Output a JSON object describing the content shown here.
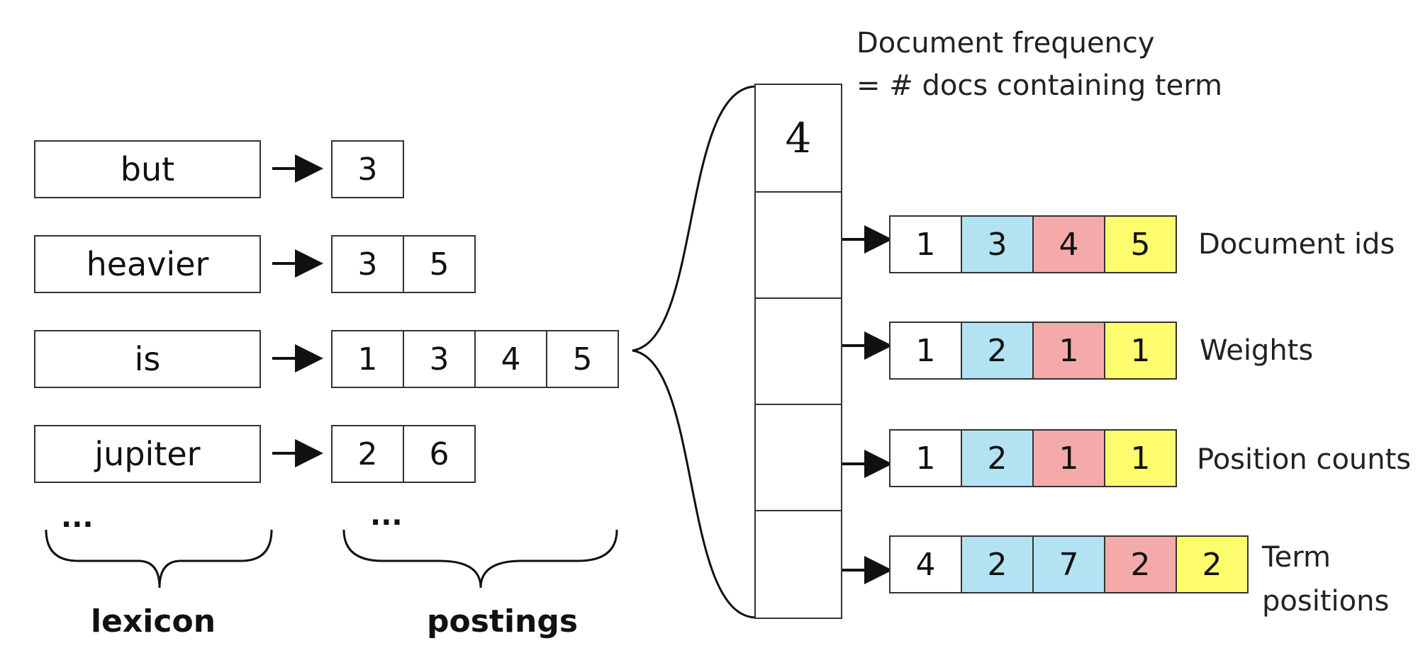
{
  "colors": {
    "white": "#ffffff",
    "blue": "#b3e3f3",
    "red": "#f5aaaa",
    "yellow": "#fdfd6e"
  },
  "lexicon": {
    "terms": [
      "but",
      "heavier",
      "is",
      "jupiter"
    ],
    "ellipsis": "...",
    "label": "lexicon"
  },
  "postings": {
    "rows": [
      [
        "3"
      ],
      [
        "3",
        "5"
      ],
      [
        "1",
        "3",
        "4",
        "5"
      ],
      [
        "2",
        "6"
      ]
    ],
    "ellipsis": "...",
    "label": "postings"
  },
  "detail": {
    "doc_frequency_value": "4",
    "doc_frequency_label_line1": "Document frequency",
    "doc_frequency_label_line2": "= # docs containing term",
    "rows": [
      {
        "label": "Document ids",
        "cells": [
          {
            "v": "1",
            "c": "white"
          },
          {
            "v": "3",
            "c": "blue"
          },
          {
            "v": "4",
            "c": "red"
          },
          {
            "v": "5",
            "c": "yellow"
          }
        ]
      },
      {
        "label": "Weights",
        "cells": [
          {
            "v": "1",
            "c": "white"
          },
          {
            "v": "2",
            "c": "blue"
          },
          {
            "v": "1",
            "c": "red"
          },
          {
            "v": "1",
            "c": "yellow"
          }
        ]
      },
      {
        "label": "Position counts",
        "cells": [
          {
            "v": "1",
            "c": "white"
          },
          {
            "v": "2",
            "c": "blue"
          },
          {
            "v": "1",
            "c": "red"
          },
          {
            "v": "1",
            "c": "yellow"
          }
        ]
      },
      {
        "label_line1": "Term",
        "label_line2": "positions",
        "cells": [
          {
            "v": "4",
            "c": "white"
          },
          {
            "v": "2",
            "c": "blue"
          },
          {
            "v": "7",
            "c": "blue"
          },
          {
            "v": "2",
            "c": "red"
          },
          {
            "v": "2",
            "c": "yellow"
          }
        ]
      }
    ]
  }
}
